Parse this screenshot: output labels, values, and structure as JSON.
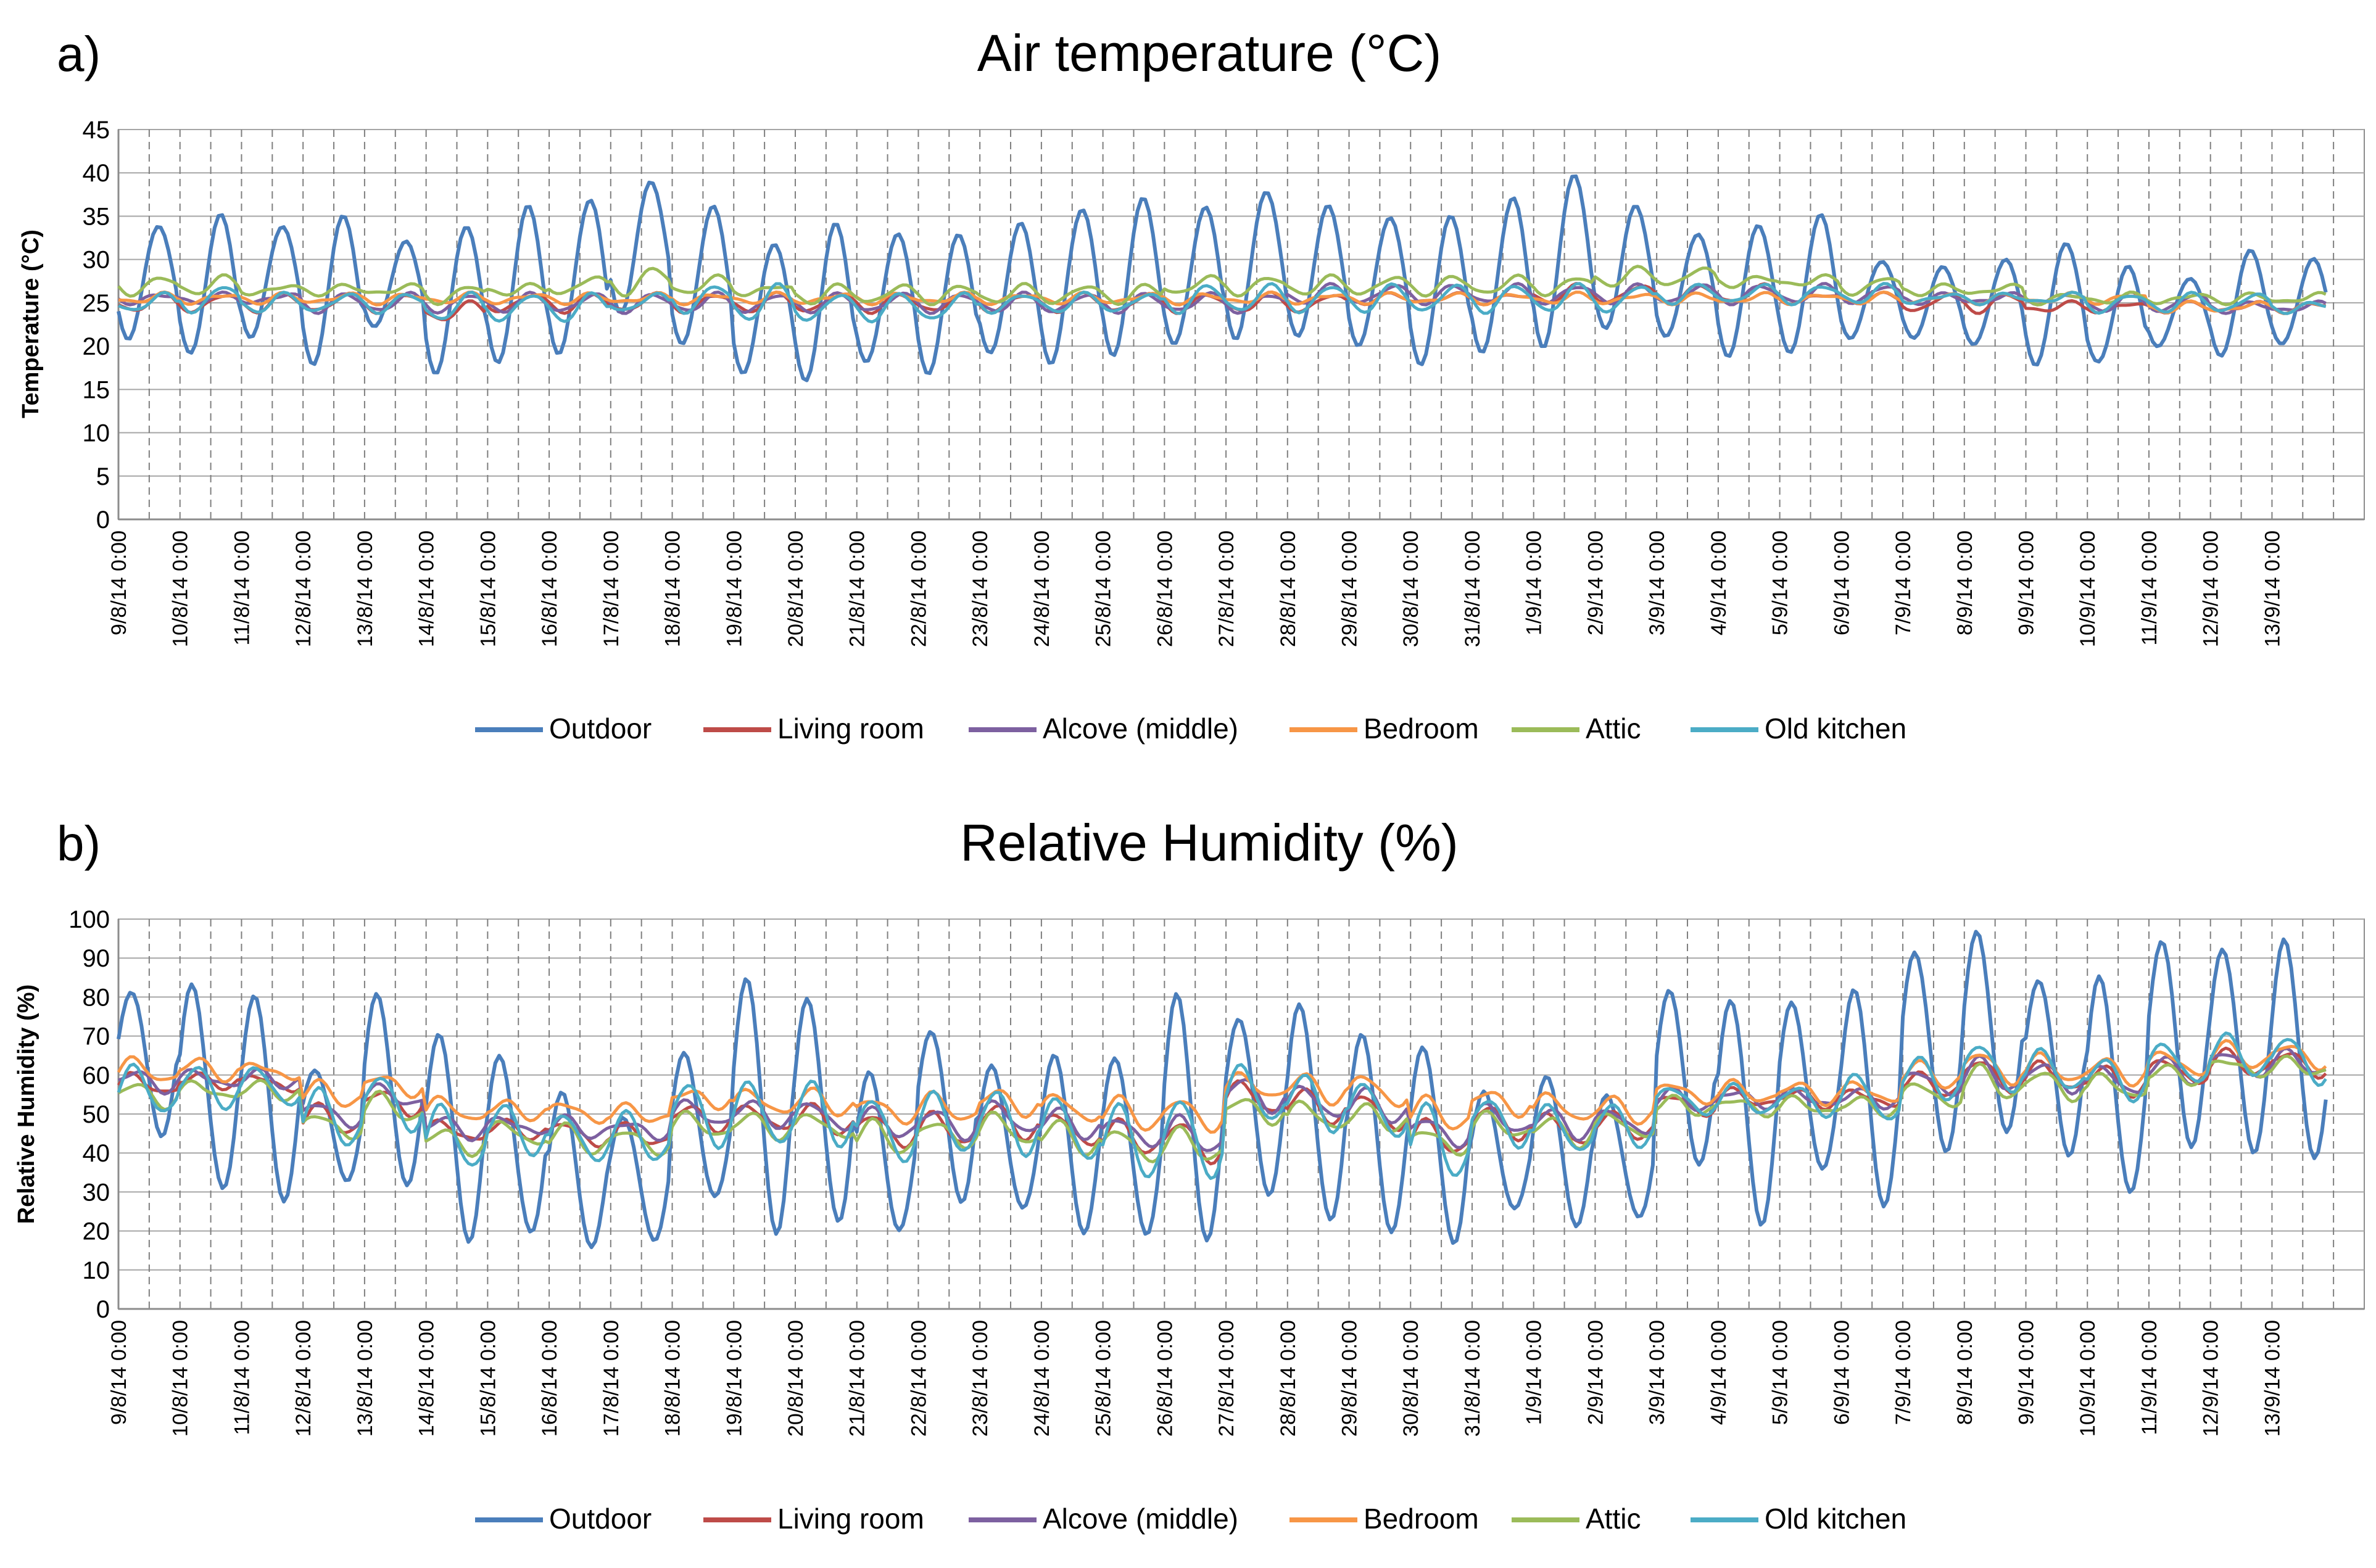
{
  "figure": {
    "panel_a": "a)",
    "panel_b": "b)"
  },
  "colors": {
    "Outdoor": "#4a7ebb",
    "Living room": "#be4b48",
    "Alcove (middle)": "#7d60a0",
    "Bedroom": "#f79646",
    "Attic": "#9bbb59",
    "Old kitchen": "#4bacc6"
  },
  "chart_data": [
    {
      "type": "line",
      "title": "Air temperature (°C)",
      "xlabel": "",
      "ylabel": "Temperature (°C)",
      "ylim": [
        0,
        45
      ],
      "yticks": [
        "0",
        "5",
        "10",
        "15",
        "20",
        "25",
        "30",
        "35",
        "40",
        "45"
      ],
      "categories": [
        "9/8/14 0:00",
        "10/8/14 0:00",
        "11/8/14 0:00",
        "12/8/14 0:00",
        "13/8/14 0:00",
        "14/8/14 0:00",
        "15/8/14 0:00",
        "16/8/14 0:00",
        "17/8/14 0:00",
        "18/8/14 0:00",
        "19/8/14 0:00",
        "20/8/14 0:00",
        "21/8/14 0:00",
        "22/8/14 0:00",
        "23/8/14 0:00",
        "24/8/14 0:00",
        "25/8/14 0:00",
        "26/8/14 0:00",
        "27/8/14 0:00",
        "28/8/14 0:00",
        "29/8/14 0:00",
        "30/8/14 0:00",
        "31/8/14 0:00",
        "1/9/14 0:00",
        "2/9/14 0:00",
        "3/9/14 0:00",
        "4/9/14 0:00",
        "5/9/14 0:00",
        "6/9/14 0:00",
        "7/9/14 0:00",
        "8/9/14 0:00",
        "9/9/14 0:00",
        "10/9/14 0:00",
        "11/9/14 0:00",
        "12/9/14 0:00",
        "13/9/14 0:00"
      ],
      "grid": true,
      "legend_position": "bottom",
      "series": [
        {
          "name": "Outdoor",
          "min": [
            21,
            19,
            21,
            18,
            22,
            17,
            18,
            19,
            24,
            20,
            17,
            16,
            18,
            17,
            19,
            18,
            19,
            20,
            21,
            21,
            20,
            18,
            19,
            20,
            22,
            21,
            19,
            19,
            21,
            21,
            20,
            18,
            18,
            20,
            19,
            20
          ],
          "max": [
            34,
            35,
            34,
            35,
            32,
            34,
            36,
            37,
            39,
            36,
            32,
            34,
            33,
            33,
            34,
            36,
            37,
            36,
            38,
            36,
            35,
            35,
            37,
            40,
            36,
            33,
            34,
            35,
            30,
            29,
            30,
            32,
            29,
            28,
            31,
            30
          ]
        },
        {
          "name": "Living room",
          "min": [
            24,
            24,
            24,
            24,
            24,
            23,
            24,
            24,
            24,
            24,
            24,
            24,
            24,
            24,
            24,
            24,
            24,
            24,
            24,
            24,
            25,
            25,
            25,
            25,
            25,
            25,
            25,
            25,
            25,
            24,
            24,
            24,
            24,
            24,
            24,
            24
          ],
          "max": [
            26,
            26,
            26,
            26,
            26,
            25,
            26,
            26,
            26,
            26,
            26,
            26,
            26,
            26,
            26,
            26,
            26,
            26,
            26,
            26,
            26,
            26,
            26,
            27,
            27,
            27,
            27,
            26,
            26,
            26,
            26,
            25,
            25,
            25,
            25,
            25
          ]
        },
        {
          "name": "Alcove (middle)",
          "min": [
            25,
            25,
            25,
            24,
            24,
            24,
            24,
            24,
            24,
            24,
            24,
            24,
            24,
            24,
            24,
            24,
            24,
            24,
            24,
            25,
            25,
            25,
            25,
            25,
            25,
            25,
            25,
            25,
            25,
            25,
            25,
            25,
            24,
            24,
            24,
            24
          ],
          "max": [
            26,
            26,
            26,
            26,
            26,
            26,
            26,
            26,
            26,
            26,
            26,
            26,
            26,
            26,
            26,
            26,
            26,
            26,
            26,
            27,
            27,
            27,
            27,
            27,
            27,
            27,
            27,
            27,
            27,
            26,
            26,
            26,
            26,
            26,
            25,
            25
          ]
        },
        {
          "name": "Bedroom",
          "min": [
            25,
            25,
            25,
            25,
            25,
            25,
            25,
            25,
            25,
            25,
            25,
            25,
            25,
            25,
            25,
            25,
            25,
            25,
            25,
            25,
            25,
            25,
            25,
            25,
            25,
            25,
            25,
            25,
            25,
            25,
            25,
            25,
            25,
            24,
            24,
            24
          ],
          "max": [
            26,
            26,
            26,
            26,
            26,
            26,
            26,
            26,
            26,
            26,
            26,
            26,
            26,
            26,
            26,
            26,
            26,
            26,
            26,
            26,
            26,
            26,
            26,
            26,
            26,
            26,
            26,
            26,
            26,
            26,
            26,
            26,
            26,
            25,
            25,
            25
          ]
        },
        {
          "name": "Attic",
          "min": [
            26,
            26,
            26,
            26,
            26,
            25,
            26,
            26,
            26,
            26,
            26,
            25,
            25,
            25,
            25,
            25,
            25,
            26,
            26,
            26,
            26,
            26,
            26,
            26,
            27,
            27,
            27,
            27,
            26,
            26,
            26,
            25,
            25,
            25,
            25,
            25
          ],
          "max": [
            28,
            28,
            27,
            27,
            27,
            27,
            27,
            28,
            29,
            28,
            27,
            27,
            27,
            27,
            27,
            27,
            27,
            28,
            28,
            28,
            28,
            28,
            28,
            28,
            29,
            29,
            28,
            28,
            28,
            27,
            27,
            26,
            26,
            26,
            26,
            26
          ]
        },
        {
          "name": "Old kitchen",
          "min": [
            24,
            24,
            24,
            24,
            24,
            23,
            23,
            23,
            24,
            24,
            23,
            23,
            23,
            23,
            24,
            24,
            24,
            24,
            24,
            24,
            24,
            24,
            24,
            24,
            24,
            25,
            25,
            25,
            25,
            25,
            25,
            25,
            24,
            24,
            24,
            24
          ],
          "max": [
            26,
            27,
            26,
            26,
            26,
            26,
            26,
            26,
            26,
            27,
            27,
            26,
            26,
            26,
            26,
            26,
            26,
            27,
            27,
            27,
            27,
            27,
            27,
            27,
            27,
            27,
            27,
            27,
            27,
            26,
            26,
            26,
            26,
            26,
            26,
            25
          ]
        }
      ]
    },
    {
      "type": "line",
      "title": "Relative Humidity (%)",
      "xlabel": "",
      "ylabel": "Relative Humidity (%)",
      "ylim": [
        0,
        100
      ],
      "yticks": [
        "0",
        "10",
        "20",
        "30",
        "40",
        "50",
        "60",
        "70",
        "80",
        "90",
        "100"
      ],
      "categories": [
        "9/8/14 0:00",
        "10/8/14 0:00",
        "11/8/14 0:00",
        "12/8/14 0:00",
        "13/8/14 0:00",
        "14/8/14 0:00",
        "15/8/14 0:00",
        "16/8/14 0:00",
        "17/8/14 0:00",
        "18/8/14 0:00",
        "19/8/14 0:00",
        "20/8/14 0:00",
        "21/8/14 0:00",
        "22/8/14 0:00",
        "23/8/14 0:00",
        "24/8/14 0:00",
        "25/8/14 0:00",
        "26/8/14 0:00",
        "27/8/14 0:00",
        "28/8/14 0:00",
        "29/8/14 0:00",
        "30/8/14 0:00",
        "31/8/14 0:00",
        "1/9/14 0:00",
        "2/9/14 0:00",
        "3/9/14 0:00",
        "4/9/14 0:00",
        "5/9/14 0:00",
        "6/9/14 0:00",
        "7/9/14 0:00",
        "8/9/14 0:00",
        "9/9/14 0:00",
        "10/9/14 0:00",
        "11/9/14 0:00",
        "12/9/14 0:00",
        "13/9/14 0:00"
      ],
      "grid": true,
      "legend_position": "bottom",
      "series": [
        {
          "name": "Outdoor",
          "min": [
            45,
            30,
            28,
            33,
            31,
            18,
            19,
            16,
            18,
            28,
            20,
            22,
            20,
            28,
            25,
            20,
            19,
            17,
            30,
            22,
            20,
            17,
            25,
            22,
            23,
            37,
            22,
            35,
            27,
            40,
            45,
            40,
            29,
            42,
            40,
            38
          ],
          "max": [
            82,
            83,
            80,
            62,
            80,
            71,
            65,
            55,
            50,
            65,
            85,
            80,
            60,
            72,
            62,
            65,
            65,
            80,
            75,
            78,
            70,
            68,
            55,
            60,
            55,
            81,
            80,
            78,
            82,
            92,
            96,
            85,
            85,
            94,
            93,
            94
          ]
        },
        {
          "name": "Living room",
          "min": [
            55,
            57,
            56,
            45,
            50,
            43,
            44,
            42,
            42,
            46,
            46,
            45,
            42,
            42,
            44,
            42,
            40,
            38,
            50,
            48,
            46,
            40,
            44,
            42,
            44,
            50,
            52,
            52,
            52,
            55,
            56,
            56,
            55,
            58,
            60,
            60
          ],
          "max": [
            60,
            60,
            60,
            52,
            56,
            48,
            48,
            48,
            47,
            52,
            52,
            52,
            50,
            50,
            52,
            50,
            48,
            48,
            58,
            56,
            55,
            48,
            52,
            50,
            50,
            55,
            56,
            56,
            56,
            60,
            64,
            63,
            62,
            64,
            66,
            66
          ]
        },
        {
          "name": "Alcove (middle)",
          "min": [
            56,
            57,
            57,
            47,
            52,
            44,
            45,
            44,
            44,
            47,
            47,
            46,
            44,
            44,
            45,
            44,
            42,
            40,
            51,
            49,
            48,
            42,
            45,
            44,
            45,
            51,
            52,
            52,
            52,
            55,
            56,
            56,
            55,
            58,
            60,
            60
          ],
          "max": [
            61,
            61,
            61,
            53,
            57,
            49,
            49,
            49,
            48,
            53,
            53,
            53,
            51,
            51,
            53,
            51,
            49,
            49,
            59,
            57,
            56,
            49,
            52,
            51,
            51,
            56,
            56,
            56,
            56,
            61,
            64,
            63,
            62,
            64,
            66,
            66
          ]
        },
        {
          "name": "Bedroom",
          "min": [
            58,
            59,
            59,
            52,
            55,
            48,
            49,
            48,
            48,
            52,
            50,
            50,
            48,
            48,
            50,
            48,
            46,
            46,
            54,
            53,
            52,
            46,
            50,
            48,
            48,
            53,
            53,
            53,
            53,
            57,
            58,
            58,
            58,
            60,
            62,
            62
          ],
          "max": [
            64,
            64,
            63,
            58,
            60,
            54,
            53,
            53,
            52,
            56,
            56,
            56,
            54,
            55,
            56,
            55,
            54,
            54,
            60,
            60,
            60,
            54,
            56,
            55,
            54,
            58,
            58,
            58,
            58,
            63,
            66,
            65,
            64,
            66,
            68,
            68
          ]
        },
        {
          "name": "Attic",
          "min": [
            52,
            54,
            54,
            44,
            48,
            40,
            42,
            40,
            40,
            44,
            44,
            44,
            40,
            42,
            42,
            40,
            38,
            38,
            48,
            46,
            46,
            40,
            44,
            42,
            44,
            50,
            50,
            50,
            50,
            52,
            54,
            54,
            54,
            58,
            60,
            60
          ],
          "max": [
            58,
            58,
            58,
            50,
            55,
            46,
            48,
            47,
            46,
            50,
            50,
            50,
            48,
            48,
            50,
            48,
            46,
            46,
            54,
            53,
            52,
            46,
            50,
            49,
            50,
            54,
            54,
            54,
            54,
            58,
            62,
            61,
            60,
            62,
            64,
            64
          ]
        },
        {
          "name": "Old kitchen",
          "min": [
            50,
            52,
            52,
            42,
            46,
            36,
            40,
            38,
            38,
            42,
            42,
            42,
            38,
            40,
            40,
            38,
            34,
            34,
            48,
            46,
            44,
            34,
            42,
            40,
            42,
            50,
            50,
            50,
            48,
            54,
            56,
            56,
            54,
            58,
            60,
            58
          ],
          "max": [
            62,
            62,
            62,
            56,
            60,
            52,
            52,
            50,
            50,
            58,
            58,
            58,
            54,
            55,
            56,
            54,
            52,
            54,
            62,
            60,
            58,
            52,
            54,
            52,
            52,
            57,
            57,
            57,
            60,
            64,
            68,
            66,
            64,
            68,
            70,
            70
          ]
        }
      ]
    }
  ],
  "legend": [
    "Outdoor",
    "Living room",
    "Alcove (middle)",
    "Bedroom",
    "Attic",
    "Old kitchen"
  ]
}
